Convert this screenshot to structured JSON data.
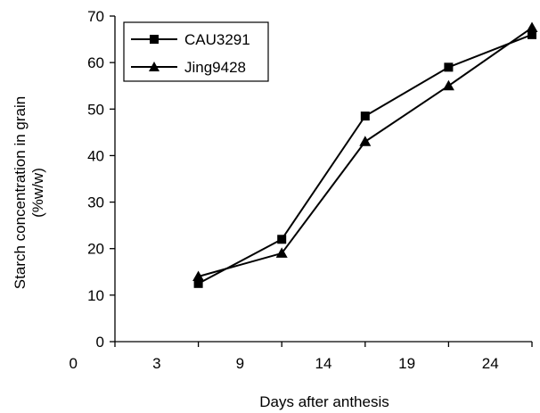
{
  "chart_data": {
    "type": "line",
    "categories": [
      "0",
      "3",
      "9",
      "14",
      "19",
      "24"
    ],
    "xlabel": "Days after anthesis",
    "ylabel_lines": [
      "Starch concentration in grain",
      "(%w/w)"
    ],
    "ylim": [
      0,
      70
    ],
    "yticks": [
      "0",
      "10",
      "20",
      "30",
      "40",
      "50",
      "60",
      "70"
    ],
    "grid": false,
    "legend_position": "top-left",
    "series": [
      {
        "name": "CAU3291",
        "marker": "square",
        "color": "#000000",
        "values": [
          null,
          12.5,
          22,
          48.5,
          59,
          66
        ]
      },
      {
        "name": "Jing9428",
        "marker": "triangle",
        "color": "#000000",
        "values": [
          null,
          14,
          19,
          43,
          55,
          67.5
        ]
      }
    ]
  }
}
